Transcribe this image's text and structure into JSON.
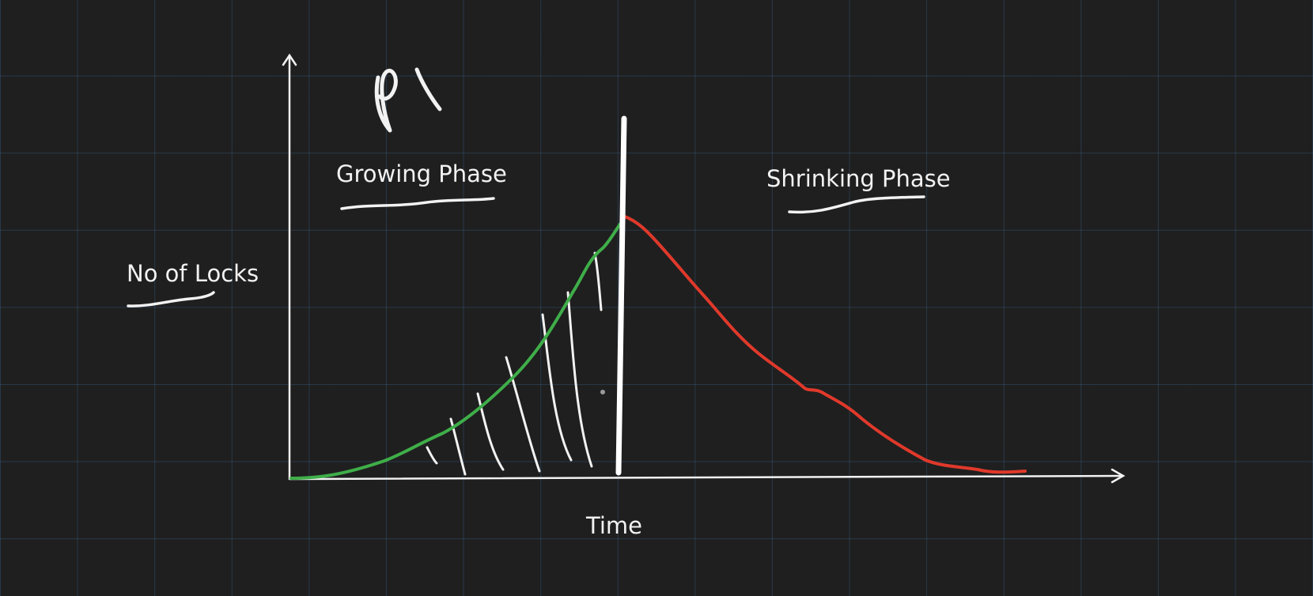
{
  "canvas": {
    "background": "#1f1f1f",
    "grid_color": "#2f4f6b"
  },
  "annotation": {
    "process_label": "P1"
  },
  "labels": {
    "growing_phase": "Growing Phase",
    "shrinking_phase": "Shrinking Phase",
    "y_axis": "No of Locks",
    "x_axis": "Time"
  },
  "colors": {
    "growing_curve": "#3fae49",
    "shrinking_curve": "#e0392b",
    "axes": "#f2f2f2",
    "divider": "#ffffff",
    "hatching": "#f2f2f2"
  }
}
